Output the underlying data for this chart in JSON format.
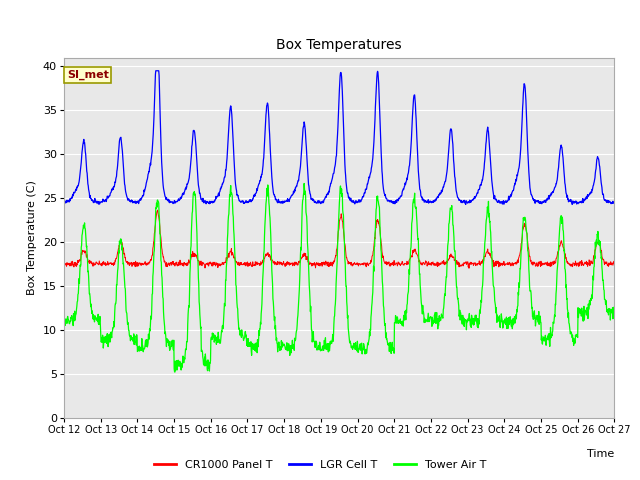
{
  "title": "Box Temperatures",
  "xlabel": "Time",
  "ylabel": "Box Temperature (C)",
  "ylim": [
    0,
    41
  ],
  "yticks": [
    0,
    5,
    10,
    15,
    20,
    25,
    30,
    35,
    40
  ],
  "xtick_labels": [
    "Oct 12",
    "Oct 13",
    "Oct 14",
    "Oct 15",
    "Oct 16",
    "Oct 17",
    "Oct 18",
    "Oct 19",
    "Oct 20",
    "Oct 21",
    "Oct 22",
    "Oct 23",
    "Oct 24",
    "Oct 25",
    "Oct 26",
    "Oct 27"
  ],
  "plot_bg_color": "#e8e8e8",
  "fig_bg_color": "#ffffff",
  "line_red": "red",
  "line_blue": "blue",
  "line_green": "#00ff00",
  "legend_labels": [
    "CR1000 Panel T",
    "LGR Cell T",
    "Tower Air T"
  ],
  "annotation_text": "SI_met",
  "annotation_bg": "#ffffcc",
  "annotation_border": "#999900",
  "grid_color": "#ffffff"
}
